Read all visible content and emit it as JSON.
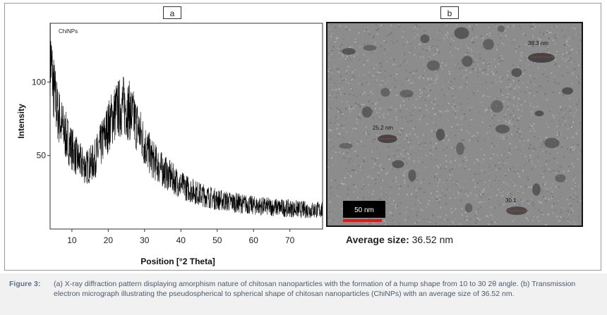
{
  "panel_a_label": "a",
  "panel_b_label": "b",
  "chart_data": {
    "type": "line",
    "legend": "ChiNPs",
    "xlabel": "Position [°2 Theta]",
    "ylabel": "Intensity",
    "xlim": [
      4,
      79
    ],
    "ylim": [
      0,
      140
    ],
    "x_ticks": [
      10,
      20,
      30,
      40,
      50,
      60,
      70
    ],
    "y_ticks": [
      50,
      100
    ],
    "envelope": {
      "x": [
        4,
        5,
        6,
        8,
        10,
        12,
        14,
        16,
        18,
        20,
        22,
        24,
        26,
        28,
        30,
        32,
        35,
        40,
        45,
        50,
        55,
        60,
        65,
        70,
        75,
        79
      ],
      "y": [
        120,
        95,
        80,
        65,
        55,
        46,
        42,
        46,
        57,
        70,
        80,
        84,
        80,
        70,
        58,
        48,
        40,
        30,
        24,
        20,
        18,
        16,
        15,
        14,
        13,
        13
      ]
    }
  },
  "micrograph": {
    "annotations": [
      {
        "text": "38.3 nm"
      },
      {
        "text": "25.2 nm"
      },
      {
        "text": "30.1"
      }
    ],
    "scale_bar_text": "50 nm"
  },
  "average_size": {
    "label": "Average size:",
    "value": "36.52 nm"
  },
  "caption": {
    "label": "Figure 3:",
    "text": "(a) X-ray diffraction pattern displaying amorphism nature of chitosan nanoparticles with the formation of a hump shape from 10 to 30 2θ angle. (b) Transmission electron micrograph illustrating the pseudospherical to spherical shape of chitosan nanoparticles (ChiNPs) with an average size of 36.52 nm."
  }
}
